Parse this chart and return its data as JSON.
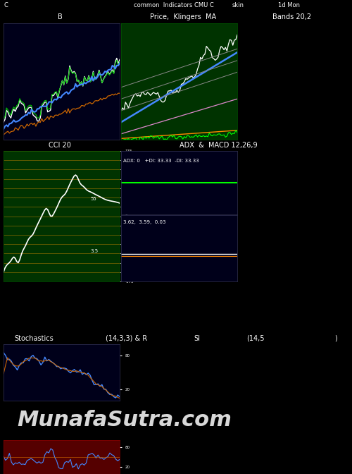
{
  "header_text": "common  Indicators CMU C",
  "header_text2": "skin",
  "header_text3": "1d Mon",
  "header_left": "C",
  "panel1_title": "B",
  "panel2_title": "Price,  Klingers  MA",
  "panel3_title": "Bands 20,2",
  "panel4_title": "CCI 20",
  "panel5_title": "ADX  &  MACD 12,26,9",
  "adx_label": "ADX: 0   +DI: 33.33  -DI: 33.33",
  "macd_label": "3.62,  3.59,  0.03",
  "stoch_title": "Stochastics",
  "stoch_params": "(14,3,3) & R",
  "si_title": "SI",
  "si_params": "(14,5",
  "si_end": ")",
  "watermark": "MunafaSutra.com",
  "bg_black": "#000000",
  "bg_dark_navy": "#00001a",
  "bg_dark_green": "#003300",
  "bg_navy": "#00001f",
  "golden_line": "#cc8800",
  "cci_grid_color": "#cc8800",
  "white_line": "#ffffff",
  "blue_line": "#4488ff",
  "green_line": "#00cc00",
  "orange_line": "#cc6600",
  "pink_line": "#dd88cc",
  "dark_gray_line": "#666666",
  "bright_green": "#00ff00",
  "bright_orange": "#ff8800"
}
